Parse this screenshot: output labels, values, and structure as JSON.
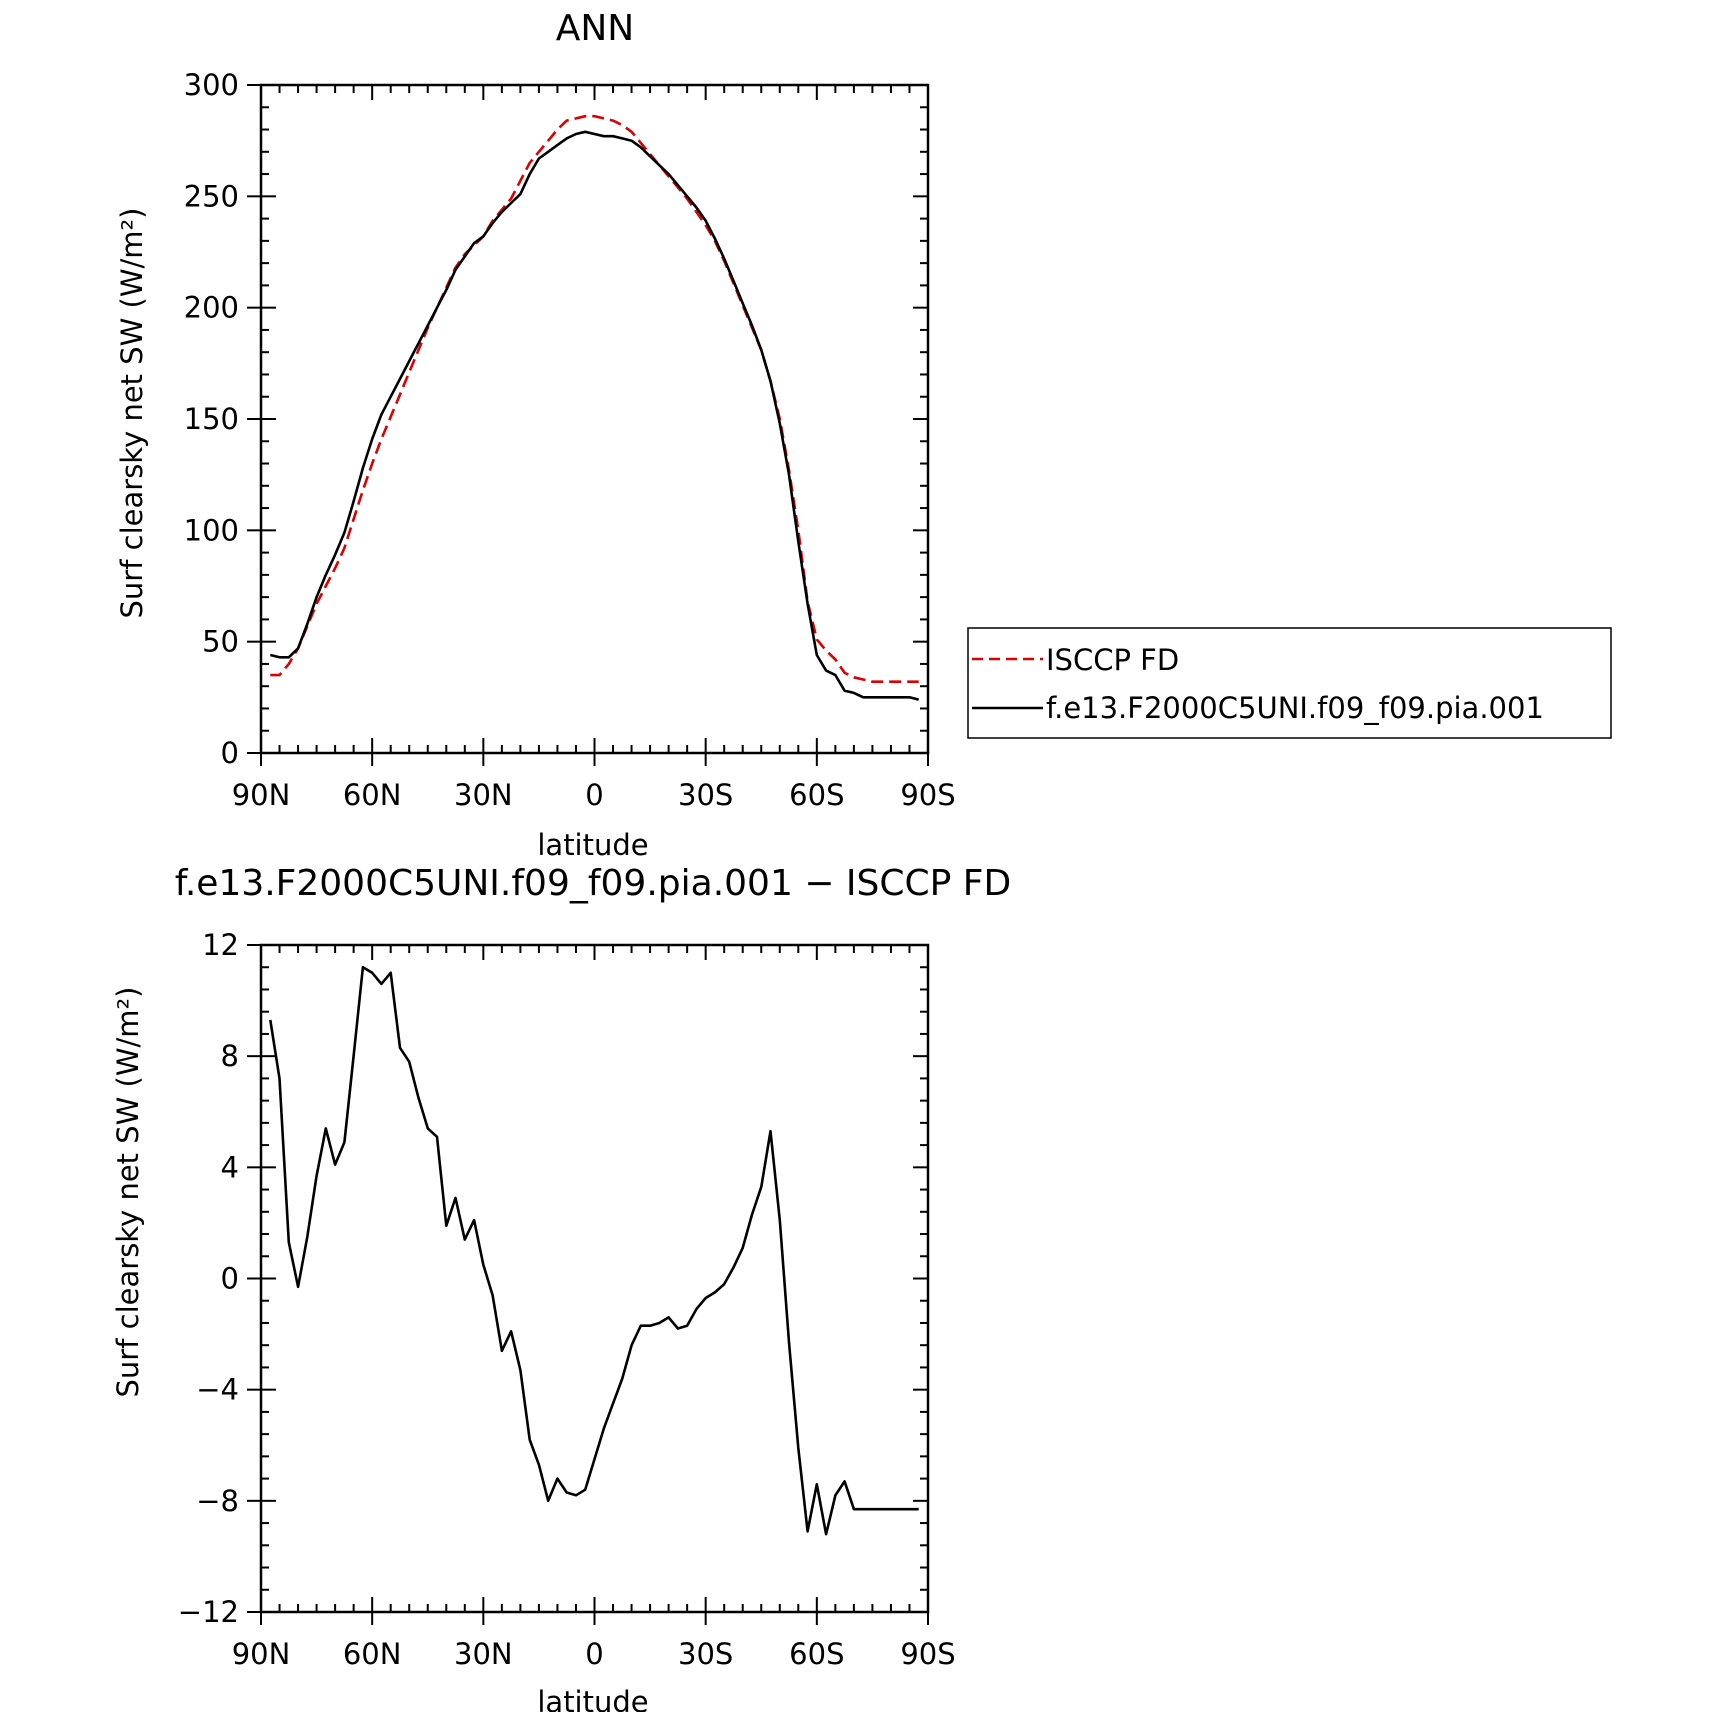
{
  "chart_data": [
    {
      "type": "line",
      "title": "ANN",
      "xlabel": "latitude",
      "ylabel": "Surf clearsky net SW (W/m²)",
      "xlim": [
        90,
        -90
      ],
      "ylim": [
        0,
        300
      ],
      "x_ticks": [
        {
          "value": 90,
          "label": "90N"
        },
        {
          "value": 60,
          "label": "60N"
        },
        {
          "value": 30,
          "label": "30N"
        },
        {
          "value": 0,
          "label": "0"
        },
        {
          "value": -30,
          "label": "30S"
        },
        {
          "value": -60,
          "label": "60S"
        },
        {
          "value": -90,
          "label": "90S"
        }
      ],
      "y_ticks": [
        {
          "value": 0,
          "label": "0"
        },
        {
          "value": 50,
          "label": "50"
        },
        {
          "value": 100,
          "label": "100"
        },
        {
          "value": 150,
          "label": "150"
        },
        {
          "value": 200,
          "label": "200"
        },
        {
          "value": 250,
          "label": "250"
        },
        {
          "value": 300,
          "label": "300"
        }
      ],
      "grid": false,
      "legend": "right",
      "series": [
        {
          "name": "ISCCP FD",
          "color": "#dd0000",
          "dash": "dashed",
          "x": [
            87.5,
            85,
            82.5,
            80,
            77.5,
            75,
            72.5,
            70,
            67.5,
            65,
            62.5,
            60,
            57.5,
            55,
            52.5,
            50,
            47.5,
            45,
            42.5,
            40,
            37.5,
            35,
            32.5,
            30,
            27.5,
            25,
            22.5,
            20,
            17.5,
            15,
            12.5,
            10,
            7.5,
            5,
            2.5,
            0,
            -2.5,
            -5,
            -7.5,
            -10,
            -12.5,
            -15,
            -17.5,
            -20,
            -22.5,
            -25,
            -27.5,
            -30,
            -32.5,
            -35,
            -37.5,
            -40,
            -42.5,
            -45,
            -47.5,
            -50,
            -52.5,
            -55,
            -57.5,
            -60,
            -62.5,
            -65,
            -67.5,
            -70,
            -72.5,
            -75,
            -77.5,
            -80,
            -82.5,
            -85,
            -87.5
          ],
          "values": [
            35,
            35,
            40,
            47,
            57,
            67,
            75,
            83,
            92,
            105,
            118,
            130,
            141,
            151,
            161,
            171,
            181,
            191,
            200,
            209,
            218,
            224,
            228,
            232,
            239,
            244,
            249,
            257,
            265,
            270,
            275,
            280,
            284,
            285,
            286,
            286,
            285,
            284,
            282,
            279,
            274,
            269,
            264,
            259,
            254,
            249,
            243,
            237,
            230,
            221,
            211,
            201,
            191,
            181,
            167,
            150,
            127,
            100,
            68,
            51,
            46,
            42,
            36,
            34,
            33,
            32,
            32,
            32,
            32,
            32,
            32
          ],
          "_note": "x continues across southern hemisphere"
        },
        {
          "name": "f.e13.F2000C5UNI.f09_f09.pia.001",
          "color": "#000000",
          "dash": "solid",
          "x": [
            87.5,
            85,
            82.5,
            80,
            77.5,
            75,
            72.5,
            70,
            67.5,
            65,
            62.5,
            60,
            57.5,
            55,
            52.5,
            50,
            47.5,
            45,
            42.5,
            40,
            37.5,
            35,
            32.5,
            30,
            27.5,
            25,
            22.5,
            20,
            17.5,
            15,
            12.5,
            10,
            7.5,
            5,
            2.5,
            0,
            -2.5,
            -5,
            -7.5,
            -10,
            -12.5,
            -15,
            -17.5,
            -20,
            -22.5,
            -25,
            -27.5,
            -30,
            -32.5,
            -35,
            -37.5,
            -40,
            -42.5,
            -45,
            -47.5,
            -50,
            -52.5,
            -55,
            -57.5,
            -60,
            -62.5,
            -65,
            -67.5,
            -70,
            -72.5,
            -75,
            -77.5,
            -80,
            -82.5,
            -85,
            -87.5
          ],
          "values": [
            44,
            43,
            43,
            47,
            58,
            70,
            80,
            89,
            99,
            113,
            128,
            141,
            152,
            160,
            168,
            176,
            184,
            192,
            200,
            208,
            217,
            223,
            229,
            232,
            238,
            243,
            247,
            251,
            260,
            267,
            270,
            273,
            276,
            278,
            279,
            278,
            277,
            277,
            276,
            275,
            272,
            268,
            264,
            260,
            255,
            250,
            245,
            239,
            231,
            222,
            212,
            202,
            192,
            181,
            167,
            148,
            125,
            95,
            67,
            44,
            37,
            35,
            28,
            27,
            25,
            25,
            25,
            25,
            25,
            25,
            24
          ]
        }
      ]
    },
    {
      "type": "line",
      "title": "f.e13.F2000C5UNI.f09_f09.pia.001 − ISCCP FD",
      "xlabel": "latitude",
      "ylabel": "Surf clearsky net SW (W/m²)",
      "xlim": [
        90,
        -90
      ],
      "ylim": [
        -12,
        12
      ],
      "x_ticks": [
        {
          "value": 90,
          "label": "90N"
        },
        {
          "value": 60,
          "label": "60N"
        },
        {
          "value": 30,
          "label": "30N"
        },
        {
          "value": 0,
          "label": "0"
        },
        {
          "value": -30,
          "label": "30S"
        },
        {
          "value": -60,
          "label": "60S"
        },
        {
          "value": -90,
          "label": "90S"
        }
      ],
      "y_ticks": [
        {
          "value": -12,
          "label": "−12"
        },
        {
          "value": -8,
          "label": "−8"
        },
        {
          "value": -4,
          "label": "−4"
        },
        {
          "value": 0,
          "label": "0"
        },
        {
          "value": 4,
          "label": "4"
        },
        {
          "value": 8,
          "label": "8"
        },
        {
          "value": 12,
          "label": "12"
        }
      ],
      "grid": false,
      "series": [
        {
          "color": "#000000",
          "dash": "solid",
          "x": [
            87.5,
            85,
            82.5,
            80,
            77.5,
            75,
            72.5,
            70,
            67.5,
            65,
            62.5,
            60,
            57.5,
            55,
            52.5,
            50,
            47.5,
            45,
            42.5,
            40,
            37.5,
            35,
            32.5,
            30,
            27.5,
            25,
            22.5,
            20,
            17.5,
            15,
            12.5,
            10,
            7.5,
            5,
            2.5,
            0,
            -2.5,
            -5,
            -7.5,
            -10,
            -12.5,
            -15,
            -17.5,
            -20,
            -22.5,
            -25,
            -27.5,
            -30,
            -32.5,
            -35,
            -37.5,
            -40,
            -42.5,
            -45,
            -47.5,
            -50,
            -52.5,
            -55,
            -57.5,
            -60,
            -62.5,
            -65,
            -67.5,
            -70,
            -72.5,
            -75,
            -77.5,
            -80,
            -82.5,
            -85,
            -87.5
          ],
          "values": [
            9.3,
            7.2,
            1.3,
            -0.3,
            1.5,
            3.7,
            5.4,
            4.1,
            4.9,
            8.0,
            11.2,
            11.0,
            10.6,
            11.0,
            8.3,
            7.8,
            6.5,
            5.4,
            5.1,
            1.9,
            2.9,
            1.4,
            2.1,
            0.5,
            -0.6,
            -2.6,
            -1.9,
            -3.3,
            -5.8,
            -6.7,
            -8.0,
            -7.2,
            -7.7,
            -7.8,
            -7.6,
            -6.5,
            -5.4,
            -4.5,
            -3.6,
            -2.4,
            -1.7,
            -1.7,
            -1.6,
            -1.4,
            -1.8,
            -1.7,
            -1.1,
            -0.7,
            -0.5,
            -0.2,
            0.4,
            1.1,
            2.3,
            3.3,
            5.3,
            2.1,
            -2.3,
            -6.1,
            -9.1,
            -7.4,
            -9.2,
            -7.8,
            -7.3,
            -8.3,
            -8.3,
            -8.3,
            -8.3,
            -8.3,
            -8.3,
            -8.3,
            -8.3
          ]
        }
      ]
    }
  ]
}
